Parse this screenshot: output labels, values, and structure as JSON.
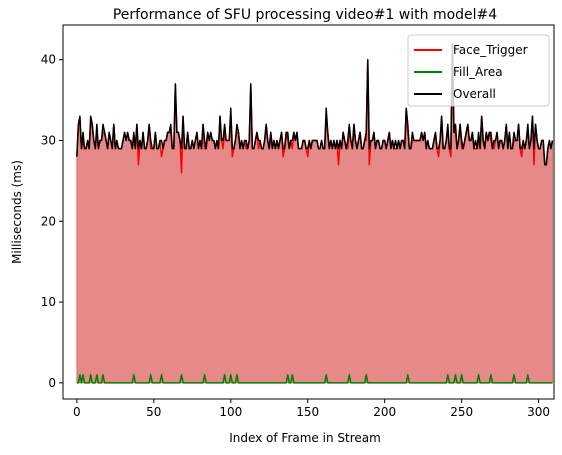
{
  "chart_data": {
    "type": "line",
    "title": "Performance of SFU processing video#1 with model#4",
    "xlabel": "Index of Frame in Stream",
    "ylabel": "Milliseconds (ms)",
    "xlim": [
      -9,
      310
    ],
    "ylim": [
      -2.0,
      44.3
    ],
    "xticks": [
      0,
      50,
      100,
      150,
      200,
      250,
      300
    ],
    "yticks": [
      0,
      10,
      20,
      30,
      40
    ],
    "grid": false,
    "legend": {
      "placement": "top-right"
    },
    "frames": {
      "start": 0,
      "end": 301
    },
    "base_values": [
      28,
      32,
      32,
      29,
      30,
      29,
      29,
      30,
      29,
      32,
      32,
      30,
      29,
      31,
      29,
      30,
      30,
      31,
      31,
      30,
      29,
      31,
      30,
      29,
      32,
      29,
      30,
      29,
      29,
      29,
      30,
      31,
      30,
      31,
      30,
      30,
      29,
      30,
      29,
      32,
      29,
      30,
      29,
      31,
      29,
      29,
      30,
      32,
      29,
      29,
      29,
      31,
      29,
      29,
      30,
      29,
      29,
      30,
      30,
      31,
      31,
      32,
      29,
      29,
      37,
      31,
      31,
      30,
      28,
      33,
      29,
      29,
      31,
      29,
      29,
      30,
      29,
      30,
      31,
      29,
      30,
      29,
      32,
      29,
      29,
      31,
      30,
      31,
      30,
      30,
      29,
      30,
      29,
      33,
      30,
      30,
      31,
      30,
      30,
      30,
      33,
      29,
      29,
      30,
      31,
      31,
      29,
      30,
      29,
      30,
      30,
      29,
      30,
      37,
      29,
      29,
      30,
      31,
      30,
      30,
      29,
      29,
      30,
      32,
      30,
      29,
      31,
      29,
      30,
      29,
      30,
      29,
      30,
      31,
      29,
      29,
      31,
      30,
      29,
      30,
      29,
      31,
      30,
      31,
      29,
      29,
      29,
      30,
      30,
      29,
      29,
      30,
      29,
      30,
      30,
      30,
      30,
      29,
      29,
      30,
      29,
      29,
      33,
      31,
      29,
      30,
      29,
      30,
      29,
      30,
      29,
      30,
      29,
      31,
      30,
      29,
      30,
      31,
      30,
      29,
      32,
      30,
      29,
      30,
      31,
      29,
      29,
      30,
      30,
      40,
      29,
      30,
      30,
      31,
      29,
      30,
      30,
      29,
      29,
      30,
      30,
      29,
      30,
      31,
      29,
      30,
      29,
      30,
      29,
      30,
      29,
      30,
      30,
      29,
      34,
      31,
      29,
      29,
      31,
      30,
      30,
      30,
      30,
      30,
      31,
      30,
      31,
      29,
      30,
      29,
      29,
      29,
      30,
      31,
      29,
      29,
      30,
      33,
      29,
      29,
      30,
      31,
      29,
      29,
      42,
      31,
      31,
      29,
      30,
      32,
      29,
      29,
      30,
      31,
      32,
      30,
      30,
      31,
      29,
      30,
      29,
      30,
      29,
      33,
      30,
      29,
      31,
      30,
      31,
      30,
      29,
      30,
      30,
      31,
      29,
      30,
      30,
      29,
      30,
      32,
      29,
      31,
      29,
      29,
      30,
      30,
      30,
      32,
      29,
      29,
      30,
      29,
      30,
      31,
      29,
      30,
      33,
      29,
      32,
      30,
      29,
      29,
      30,
      30,
      27,
      27,
      29,
      30,
      29,
      30
    ],
    "face_trigger_dips": [
      [
        40,
        -2
      ],
      [
        55,
        -1
      ],
      [
        61,
        -1
      ],
      [
        68,
        -2
      ],
      [
        95,
        -1
      ],
      [
        101,
        -1
      ],
      [
        110,
        -1
      ],
      [
        118,
        -1
      ],
      [
        134,
        -1
      ],
      [
        150,
        -1
      ],
      [
        170,
        -2
      ],
      [
        176,
        -1
      ],
      [
        190,
        -2
      ],
      [
        207,
        -1
      ],
      [
        218,
        -1
      ],
      [
        235,
        -1
      ],
      [
        243,
        -1
      ],
      [
        259,
        -1
      ],
      [
        271,
        -1
      ],
      [
        289,
        -1
      ],
      [
        297,
        -2
      ]
    ],
    "fill_area_spikes": [
      2,
      4,
      9,
      13,
      17,
      37,
      48,
      55,
      68,
      83,
      96,
      100,
      104,
      137,
      140,
      162,
      177,
      188,
      215,
      241,
      246,
      250,
      261,
      269,
      284,
      293
    ],
    "fill_area_spike_value": 1,
    "series": [
      {
        "name": "Face_Trigger",
        "color": "#ff0000",
        "fill_color": "#e58a88",
        "rule": "base_values + face_trigger_dips"
      },
      {
        "name": "Fill_Area",
        "color": "#008000",
        "rule": "0, with fill_area_spike_value at each index in fill_area_spikes"
      },
      {
        "name": "Overall",
        "color": "#000000",
        "rule": "base_values + fill_area_spikes"
      }
    ]
  }
}
